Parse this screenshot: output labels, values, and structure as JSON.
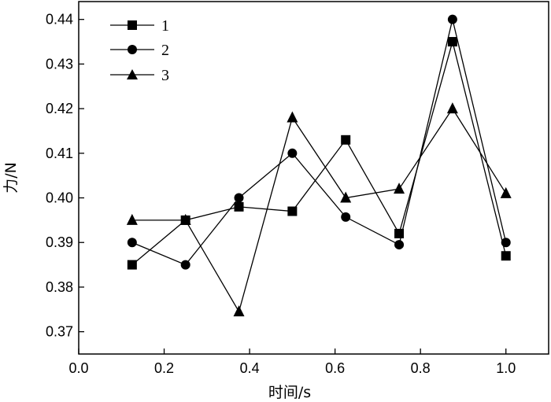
{
  "chart_data": {
    "type": "line",
    "xlabel": "时间/s",
    "ylabel": "力/N",
    "xlim": [
      0.0,
      1.1
    ],
    "ylim": [
      0.365,
      0.444
    ],
    "x_ticks": [
      "0.0",
      "0.2",
      "0.4",
      "0.6",
      "0.8",
      "1.0"
    ],
    "y_ticks": [
      "0.37",
      "0.38",
      "0.39",
      "0.40",
      "0.41",
      "0.42",
      "0.43",
      "0.44"
    ],
    "x": [
      0.125,
      0.25,
      0.375,
      0.5,
      0.625,
      0.75,
      0.875,
      1.0
    ],
    "series": [
      {
        "name": "1",
        "marker": "square",
        "values": [
          0.385,
          0.395,
          0.398,
          0.397,
          0.413,
          0.392,
          0.435,
          0.387
        ]
      },
      {
        "name": "2",
        "marker": "circle",
        "values": [
          0.39,
          0.385,
          0.4,
          0.41,
          0.3957,
          0.3895,
          0.44,
          0.39
        ]
      },
      {
        "name": "3",
        "marker": "triangle",
        "values": [
          0.395,
          0.395,
          0.3745,
          0.418,
          0.4,
          0.402,
          0.42,
          0.401
        ]
      }
    ],
    "legend_position": "top-left",
    "grid": false,
    "colors": {
      "line": "#000000",
      "marker": "#000000"
    }
  }
}
